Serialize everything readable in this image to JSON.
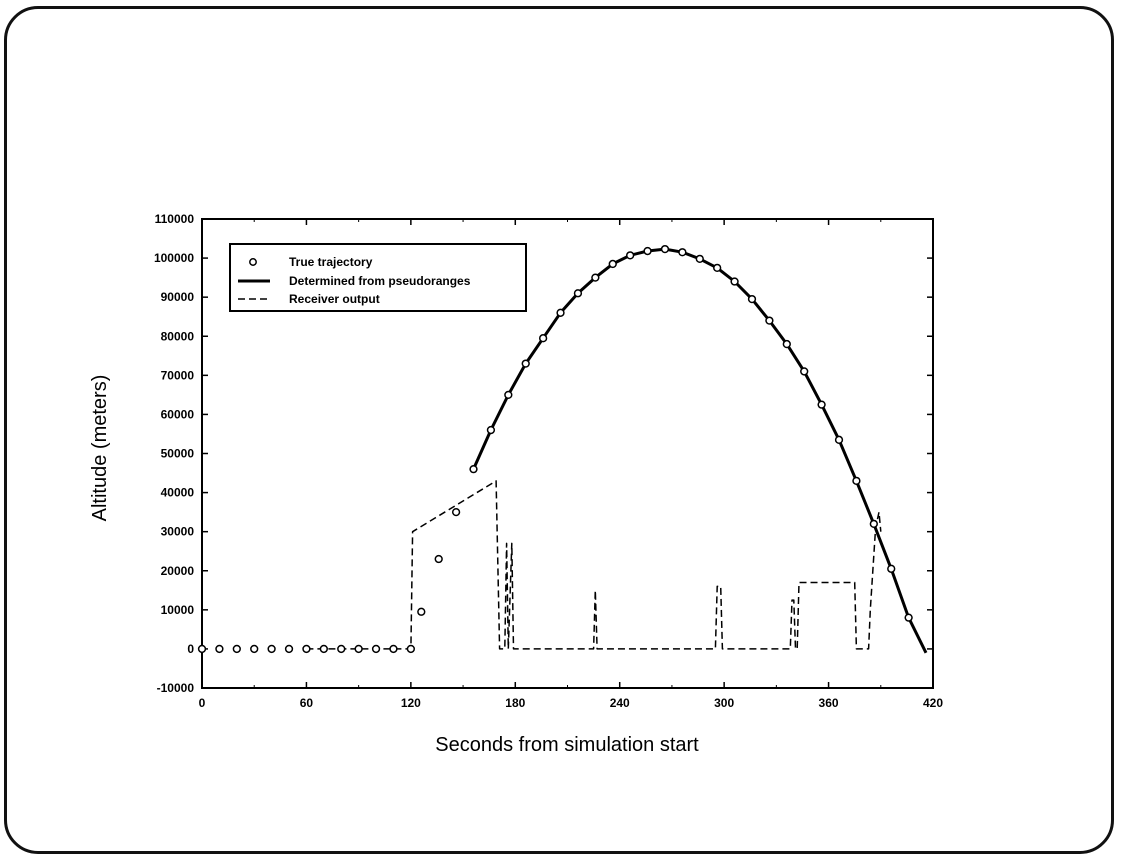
{
  "chart_data": {
    "type": "line",
    "title": "",
    "xlabel": "Seconds from simulation start",
    "ylabel": "Altitude (meters)",
    "xlim": [
      0,
      420
    ],
    "ylim": [
      -10000,
      110000
    ],
    "x_ticks": [
      "0",
      "60",
      "120",
      "180",
      "240",
      "300",
      "360",
      "420"
    ],
    "y_ticks": [
      "-10000",
      "0",
      "10000",
      "20000",
      "30000",
      "40000",
      "50000",
      "60000",
      "70000",
      "80000",
      "90000",
      "100000",
      "110000"
    ],
    "grid": false,
    "legend_position": "top-left",
    "series": [
      {
        "name": "True trajectory",
        "style": "open-circle-markers",
        "color": "#000000",
        "x": [
          0,
          10,
          20,
          30,
          40,
          50,
          60,
          70,
          80,
          90,
          100,
          110,
          120,
          126,
          136,
          146,
          156,
          166,
          176,
          186,
          196,
          206,
          216,
          226,
          236,
          246,
          256,
          266,
          276,
          286,
          296,
          306,
          316,
          326,
          336,
          346,
          356,
          366,
          376,
          386,
          396,
          406
        ],
        "y": [
          0,
          0,
          0,
          0,
          0,
          0,
          0,
          0,
          0,
          0,
          0,
          0,
          0,
          9500,
          23000,
          35000,
          46000,
          56000,
          65000,
          73000,
          79500,
          86000,
          91000,
          95000,
          98500,
          100700,
          101800,
          102300,
          101500,
          99800,
          97500,
          94000,
          89500,
          84000,
          78000,
          71000,
          62500,
          53500,
          43000,
          32000,
          20500,
          8000
        ]
      },
      {
        "name": "Determined from pseudoranges",
        "style": "solid-thick",
        "color": "#000000",
        "x": [
          156,
          166,
          176,
          186,
          196,
          206,
          216,
          226,
          236,
          246,
          256,
          266,
          276,
          286,
          296,
          306,
          316,
          326,
          336,
          346,
          356,
          366,
          376,
          386,
          396,
          406,
          416
        ],
        "y": [
          46000,
          56000,
          65000,
          73000,
          79500,
          86000,
          91000,
          95000,
          98500,
          100700,
          101800,
          102300,
          101500,
          99800,
          97500,
          94000,
          89500,
          84000,
          78000,
          71000,
          62500,
          53500,
          43000,
          32000,
          20500,
          8000,
          -1000
        ]
      },
      {
        "name": "Receiver output",
        "style": "dashed",
        "color": "#000000",
        "x": [
          60,
          120,
          121,
          169,
          171,
          174,
          175,
          176,
          178,
          179,
          180,
          225,
          226,
          227,
          228,
          295,
          296,
          298,
          299,
          300,
          338,
          339,
          340,
          341,
          342,
          343,
          344,
          345,
          375,
          376,
          383,
          384,
          387,
          389,
          390
        ],
        "y": [
          0,
          0,
          30000,
          43000,
          0,
          0,
          27000,
          0,
          27000,
          0,
          0,
          0,
          15000,
          0,
          0,
          0,
          16000,
          16000,
          0,
          0,
          0,
          12500,
          12500,
          0,
          0,
          17000,
          17000,
          17000,
          17000,
          0,
          0,
          10000,
          31000,
          35000,
          30000
        ]
      }
    ]
  }
}
